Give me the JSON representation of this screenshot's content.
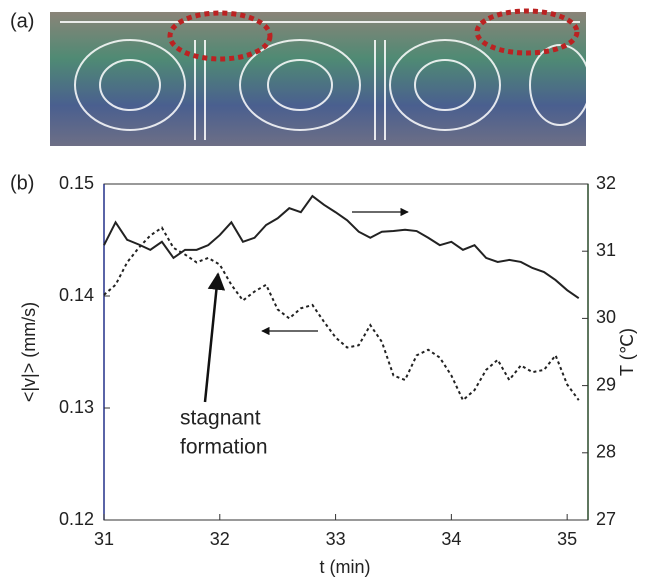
{
  "panel_labels": [
    "(a)",
    "(b)"
  ],
  "chart_data": {
    "type": "line",
    "xlabel": "t (min)",
    "ylabel": "<|v|> (mm/s)",
    "y2label": "T (℃)",
    "annotation": [
      "stagnant",
      "formation"
    ],
    "x": [
      31.0,
      31.1,
      31.2,
      31.3,
      31.4,
      31.5,
      31.6,
      31.7,
      31.8,
      31.9,
      32.0,
      32.1,
      32.2,
      32.3,
      32.4,
      32.5,
      32.6,
      32.7,
      32.8,
      32.9,
      33.0,
      33.1,
      33.2,
      33.3,
      33.4,
      33.5,
      33.6,
      33.7,
      33.8,
      33.9,
      34.0,
      34.1,
      34.2,
      34.3,
      34.4,
      34.5,
      34.6,
      34.7,
      34.8,
      34.9,
      35.0,
      35.1
    ],
    "series": [
      {
        "color": "#222222",
        "dash": "none",
        "axis": "y2",
        "values": [
          31.09,
          31.43,
          31.17,
          31.1,
          31.02,
          31.14,
          30.9,
          31.02,
          31.02,
          31.09,
          31.24,
          31.43,
          31.14,
          31.2,
          31.39,
          31.49,
          31.64,
          31.58,
          31.82,
          31.69,
          31.58,
          31.46,
          31.29,
          31.2,
          31.29,
          31.3,
          31.32,
          31.3,
          31.2,
          31.09,
          31.14,
          31.02,
          31.09,
          30.9,
          30.84,
          30.87,
          30.84,
          30.75,
          30.69,
          30.57,
          30.42,
          30.3
        ]
      },
      {
        "color": "#222222",
        "dash": "3 3",
        "axis": "y",
        "values": [
          0.1401,
          0.141,
          0.143,
          0.1443,
          0.1454,
          0.1461,
          0.1443,
          0.1437,
          0.143,
          0.1434,
          0.1428,
          0.141,
          0.1396,
          0.1404,
          0.141,
          0.1388,
          0.138,
          0.1389,
          0.1392,
          0.1377,
          0.1363,
          0.1354,
          0.1356,
          0.1374,
          0.1359,
          0.1329,
          0.1325,
          0.1347,
          0.1352,
          0.1345,
          0.1329,
          0.1307,
          0.1316,
          0.1334,
          0.1343,
          0.1325,
          0.1338,
          0.1332,
          0.1334,
          0.1347,
          0.1321,
          0.1307
        ]
      }
    ],
    "xlim": [
      31,
      35.18
    ],
    "xticks": [
      31,
      32,
      33,
      34,
      35
    ],
    "ylim": [
      0.12,
      0.15
    ],
    "yticks": [
      0.12,
      0.13,
      0.14,
      0.15
    ],
    "y2lim": [
      27,
      32
    ],
    "y2ticks": [
      27,
      28,
      29,
      30,
      31,
      32
    ]
  }
}
